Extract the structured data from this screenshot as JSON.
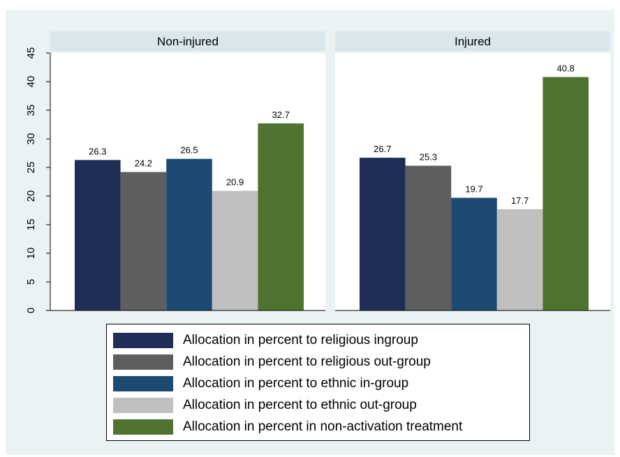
{
  "chart_data": {
    "type": "bar",
    "panels": [
      {
        "title": "Non-injured",
        "values": [
          26.3,
          24.2,
          26.5,
          20.9,
          32.7
        ],
        "labels": [
          "26.3",
          "24.2",
          "26.5",
          "20.9",
          "32.7"
        ]
      },
      {
        "title": "Injured",
        "values": [
          26.7,
          25.3,
          19.7,
          17.7,
          40.8
        ],
        "labels": [
          "26.7",
          "25.3",
          "19.7",
          "17.7",
          "40.8"
        ]
      }
    ],
    "series": [
      {
        "name": "Allocation in percent to religious ingroup",
        "color": "#1f2d57"
      },
      {
        "name": "Allocation in percent to religious out-group",
        "color": "#5e5e5e"
      },
      {
        "name": "Allocation in percent to ethnic in-group",
        "color": "#1c4a72"
      },
      {
        "name": "Allocation in percent to ethnic out-group",
        "color": "#c0c0c0"
      },
      {
        "name": "Allocation in percent in non-activation treatment",
        "color": "#4f7431"
      }
    ],
    "yticks": [
      "0",
      "5",
      "10",
      "15",
      "20",
      "25",
      "30",
      "35",
      "40",
      "45"
    ],
    "ylim": [
      0,
      45
    ],
    "grid": false,
    "legend_position": "bottom"
  },
  "colors": {
    "outer_background": "#eaf2f3",
    "panel_header": "#d9e6eb",
    "plot_background": "#ffffff"
  }
}
